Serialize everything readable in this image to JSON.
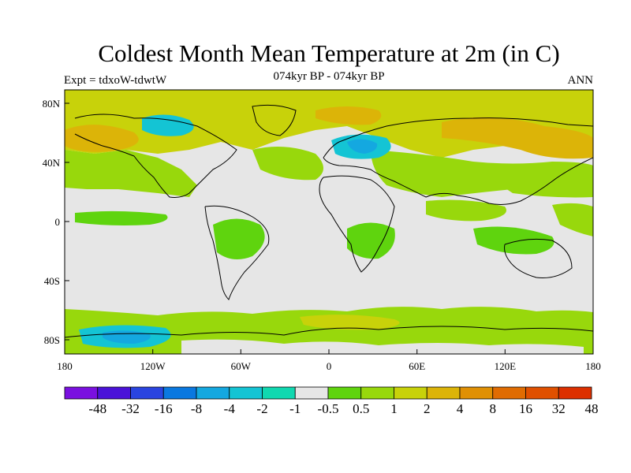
{
  "title": "Coldest Month Mean Temperature at 2m (in C)",
  "subtitle": "074kyr BP - 074kyr BP",
  "left_label": "Expt = tdxoW-tdwtW",
  "right_label": "ANN",
  "lat_ticks": [
    "80N",
    "40N",
    "0",
    "40S",
    "80S"
  ],
  "lon_ticks": [
    "180",
    "120W",
    "60W",
    "0",
    "60E",
    "120E",
    "180"
  ],
  "colorbar": {
    "colors": [
      "#7a10e0",
      "#4a12d8",
      "#2a44e0",
      "#0a78e0",
      "#14a8e0",
      "#14c4d4",
      "#10d8b0",
      "#e6e6e6",
      "#5fd40e",
      "#98d80c",
      "#c8d20a",
      "#dcb408",
      "#e09004",
      "#e06c02",
      "#e05000",
      "#dc3000"
    ],
    "labels": [
      "-48",
      "-32",
      "-16",
      "-8",
      "-4",
      "-2",
      "-1",
      "-0.5",
      "0.5",
      "1",
      "2",
      "4",
      "8",
      "16",
      "32",
      "48"
    ]
  },
  "map": {
    "background": "#e6e6e6",
    "ocean_positive": "#98d80c",
    "high_lat_warm": "#c8d20a",
    "arctic_warm": "#dcb408",
    "cold_patch": "#14c4d4",
    "cold_patch_strong": "#14a8e0",
    "land_mild": "#5fd40e"
  }
}
